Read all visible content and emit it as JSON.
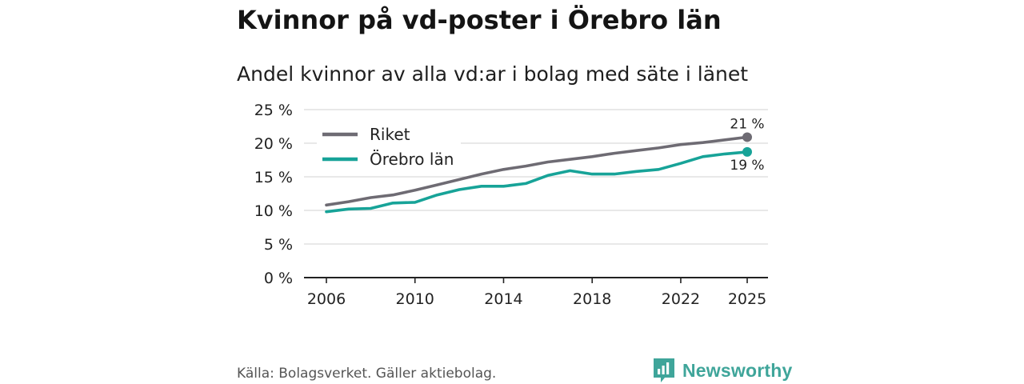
{
  "title": "Kvinnor på vd-poster i Örebro län",
  "subtitle": "Andel kvinnor av alla vd:ar i bolag med säte i länet",
  "source": "Källa: Bolagsverket. Gäller aktiebolag.",
  "brand": {
    "name": "Newsworthy",
    "icon": "bar-chart-speech-bubble-icon"
  },
  "colors": {
    "riket": "#6e6b73",
    "orebro": "#17a398",
    "grid": "#d9d9d9",
    "axis": "#222222",
    "brand": "#3fa59a"
  },
  "chart_data": {
    "type": "line",
    "title": "Andel kvinnor av alla vd:ar i bolag med säte i länet",
    "xlabel": "",
    "ylabel": "",
    "unit": "%",
    "xlim": [
      2006,
      2025
    ],
    "ylim": [
      0,
      25
    ],
    "y_ticks": [
      0,
      5,
      10,
      15,
      20,
      25
    ],
    "y_tick_labels": [
      "0 %",
      "5 %",
      "10 %",
      "15 %",
      "20 %",
      "25 %"
    ],
    "x_ticks": [
      2006,
      2010,
      2014,
      2018,
      2022,
      2025
    ],
    "x_tick_labels": [
      "2006",
      "2010",
      "2014",
      "2018",
      "2022",
      "2025"
    ],
    "grid": true,
    "legend_position": "top-left",
    "x": [
      2006,
      2007,
      2008,
      2009,
      2010,
      2011,
      2012,
      2013,
      2014,
      2015,
      2016,
      2017,
      2018,
      2019,
      2020,
      2021,
      2022,
      2023,
      2024,
      2025
    ],
    "series": [
      {
        "name": "Riket",
        "color": "#6e6b73",
        "values": [
          10.8,
          11.3,
          11.9,
          12.3,
          13.0,
          13.8,
          14.6,
          15.4,
          16.1,
          16.6,
          17.2,
          17.6,
          18.0,
          18.5,
          18.9,
          19.3,
          19.8,
          20.1,
          20.5,
          20.9
        ],
        "end_label": "21 %"
      },
      {
        "name": "Örebro län",
        "color": "#17a398",
        "values": [
          9.8,
          10.2,
          10.3,
          11.1,
          11.2,
          12.3,
          13.1,
          13.6,
          13.6,
          14.0,
          15.2,
          15.9,
          15.4,
          15.4,
          15.8,
          16.1,
          17.0,
          18.0,
          18.4,
          18.7
        ],
        "end_label": "19 %"
      }
    ]
  }
}
